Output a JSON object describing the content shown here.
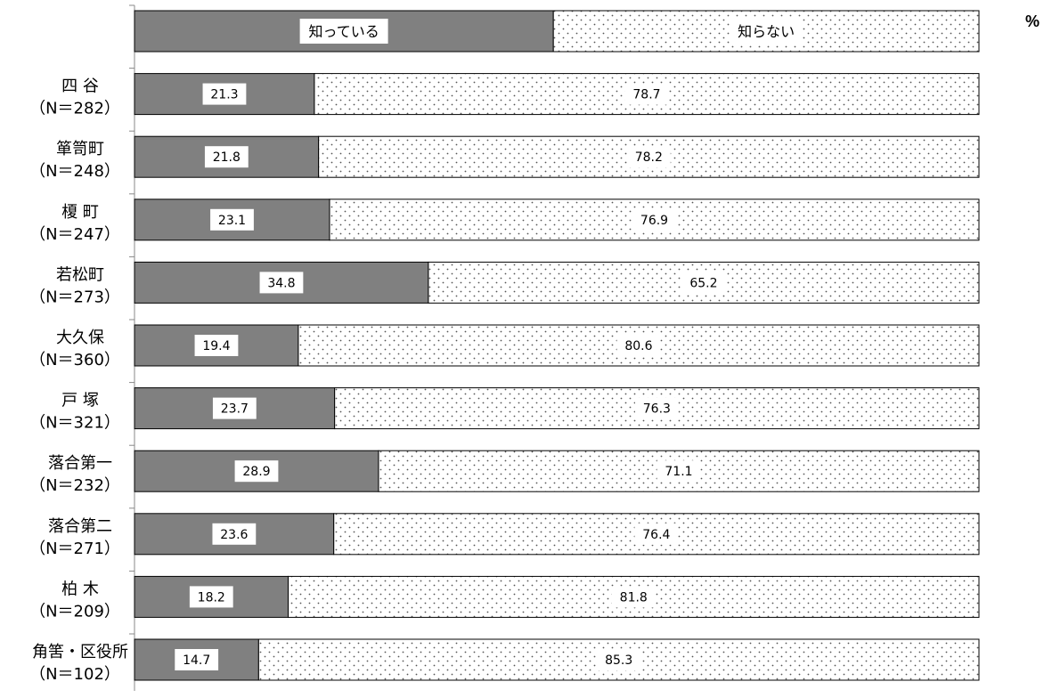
{
  "chart_data": {
    "type": "bar",
    "orientation": "horizontal",
    "stacked": true,
    "unit": "%",
    "xlim": [
      0,
      100
    ],
    "legend": {
      "placement": "top",
      "entries": [
        "知っている",
        "知らない"
      ]
    },
    "series": [
      {
        "name": "知っている",
        "color": "#808080",
        "pattern": "solid",
        "values": [
          21.3,
          21.8,
          23.1,
          34.8,
          19.4,
          23.7,
          28.9,
          23.6,
          18.2,
          14.7
        ]
      },
      {
        "name": "知らない",
        "color": "#ffffff",
        "pattern": "dots",
        "values": [
          78.7,
          78.2,
          76.9,
          65.2,
          80.6,
          76.3,
          71.1,
          76.4,
          81.8,
          85.3
        ]
      }
    ],
    "categories": [
      {
        "name": "四 谷",
        "n": "（N＝282）"
      },
      {
        "name": "箪笥町",
        "n": "（N＝248）"
      },
      {
        "name": "榎 町",
        "n": "（N＝247）"
      },
      {
        "name": "若松町",
        "n": "（N＝273）"
      },
      {
        "name": "大久保",
        "n": "（N＝360）"
      },
      {
        "name": "戸 塚",
        "n": "（N＝321）"
      },
      {
        "name": "落合第一",
        "n": "（N＝232）"
      },
      {
        "name": "落合第二",
        "n": "（N＝271）"
      },
      {
        "name": "柏 木",
        "n": "（N＝209）"
      },
      {
        "name": "角筈・区役所",
        "n": "（N＝102）"
      }
    ],
    "data_labels": [
      [
        "21.3",
        "78.7"
      ],
      [
        "21.8",
        "78.2"
      ],
      [
        "23.1",
        "76.9"
      ],
      [
        "34.8",
        "65.2"
      ],
      [
        "19.4",
        "80.6"
      ],
      [
        "23.7",
        "76.3"
      ],
      [
        "28.9",
        "71.1"
      ],
      [
        "23.6",
        "76.4"
      ],
      [
        "18.2",
        "81.8"
      ],
      [
        "14.7",
        "85.3"
      ]
    ],
    "legend_bar_values": [
      49.6,
      50.4
    ]
  }
}
